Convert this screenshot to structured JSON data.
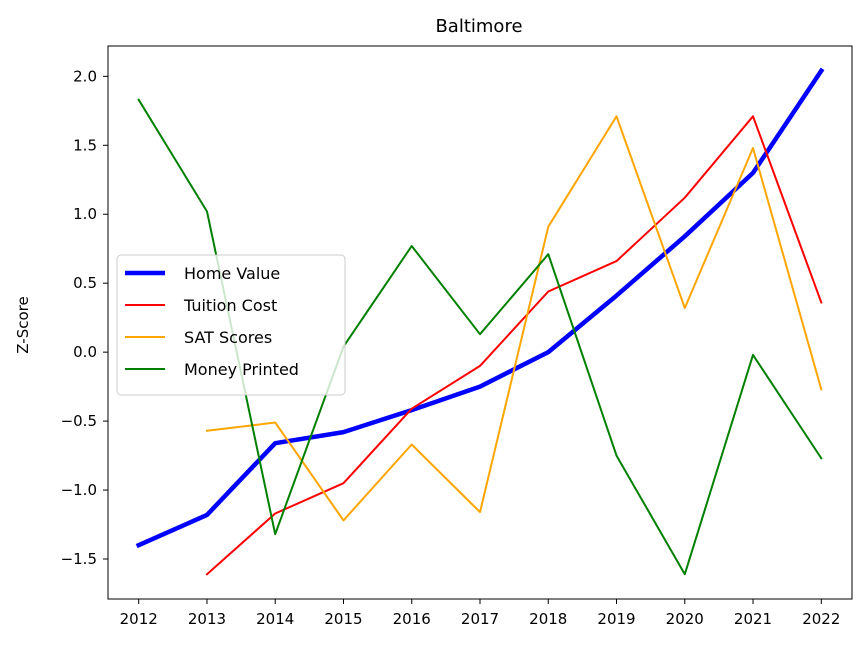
{
  "chart_data": {
    "type": "line",
    "title": "Baltimore",
    "xlabel": "",
    "ylabel": "Z-Score",
    "x": [
      2012,
      2013,
      2014,
      2015,
      2016,
      2017,
      2018,
      2019,
      2020,
      2021,
      2022
    ],
    "x_ticks": [
      "2012",
      "2013",
      "2014",
      "2015",
      "2016",
      "2017",
      "2018",
      "2019",
      "2020",
      "2021",
      "2022"
    ],
    "y_ticks": [
      "−1.5",
      "−1.0",
      "−0.5",
      "0.0",
      "0.5",
      "1.0",
      "1.5",
      "2.0"
    ],
    "y_tick_values": [
      -1.5,
      -1.0,
      -0.5,
      0.0,
      0.5,
      1.0,
      1.5,
      2.0
    ],
    "xlim": [
      2011.55,
      2022.45
    ],
    "ylim": [
      -1.79,
      2.22
    ],
    "grid": false,
    "legend_position": "center-left",
    "series": [
      {
        "name": "Home Value",
        "color": "#0000ff",
        "values": [
          -1.4,
          -1.18,
          -0.66,
          -0.58,
          -0.42,
          -0.25,
          0.0,
          0.41,
          0.84,
          1.3,
          2.04
        ]
      },
      {
        "name": "Tuition Cost",
        "color": "#ff0000",
        "values": [
          null,
          -1.61,
          -1.17,
          -0.95,
          -0.41,
          -0.1,
          0.44,
          0.66,
          1.12,
          1.71,
          0.36
        ]
      },
      {
        "name": "SAT Scores",
        "color": "#ffa500",
        "values": [
          null,
          -0.57,
          -0.51,
          -1.22,
          -0.67,
          -1.16,
          0.91,
          1.71,
          0.32,
          1.48,
          -0.27
        ]
      },
      {
        "name": "Money Printed",
        "color": "#008000",
        "values": [
          1.83,
          1.02,
          -1.32,
          0.04,
          0.77,
          0.13,
          0.71,
          -0.75,
          -1.61,
          -0.02,
          -0.77
        ]
      }
    ]
  }
}
